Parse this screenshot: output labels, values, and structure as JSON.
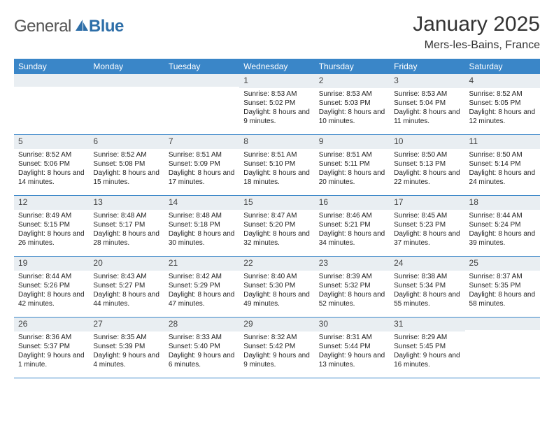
{
  "brand": {
    "general": "General",
    "blue": "Blue"
  },
  "header": {
    "title": "January 2025",
    "location": "Mers-les-Bains, France"
  },
  "colors": {
    "header_band": "#3a86c8",
    "daynum_band": "#e9eef2",
    "row_border": "#3a86c8",
    "text": "#333333",
    "logo_blue": "#2d6ea8"
  },
  "fonts": {
    "title_size_pt": 22,
    "location_size_pt": 12,
    "dow_size_pt": 9,
    "daynum_size_pt": 9,
    "body_size_pt": 7.5
  },
  "dow": [
    "Sunday",
    "Monday",
    "Tuesday",
    "Wednesday",
    "Thursday",
    "Friday",
    "Saturday"
  ],
  "weeks": [
    [
      {
        "num": "",
        "lines": []
      },
      {
        "num": "",
        "lines": []
      },
      {
        "num": "",
        "lines": []
      },
      {
        "num": "1",
        "lines": [
          "Sunrise: 8:53 AM",
          "Sunset: 5:02 PM",
          "Daylight: 8 hours and 9 minutes."
        ]
      },
      {
        "num": "2",
        "lines": [
          "Sunrise: 8:53 AM",
          "Sunset: 5:03 PM",
          "Daylight: 8 hours and 10 minutes."
        ]
      },
      {
        "num": "3",
        "lines": [
          "Sunrise: 8:53 AM",
          "Sunset: 5:04 PM",
          "Daylight: 8 hours and 11 minutes."
        ]
      },
      {
        "num": "4",
        "lines": [
          "Sunrise: 8:52 AM",
          "Sunset: 5:05 PM",
          "Daylight: 8 hours and 12 minutes."
        ]
      }
    ],
    [
      {
        "num": "5",
        "lines": [
          "Sunrise: 8:52 AM",
          "Sunset: 5:06 PM",
          "Daylight: 8 hours and 14 minutes."
        ]
      },
      {
        "num": "6",
        "lines": [
          "Sunrise: 8:52 AM",
          "Sunset: 5:08 PM",
          "Daylight: 8 hours and 15 minutes."
        ]
      },
      {
        "num": "7",
        "lines": [
          "Sunrise: 8:51 AM",
          "Sunset: 5:09 PM",
          "Daylight: 8 hours and 17 minutes."
        ]
      },
      {
        "num": "8",
        "lines": [
          "Sunrise: 8:51 AM",
          "Sunset: 5:10 PM",
          "Daylight: 8 hours and 18 minutes."
        ]
      },
      {
        "num": "9",
        "lines": [
          "Sunrise: 8:51 AM",
          "Sunset: 5:11 PM",
          "Daylight: 8 hours and 20 minutes."
        ]
      },
      {
        "num": "10",
        "lines": [
          "Sunrise: 8:50 AM",
          "Sunset: 5:13 PM",
          "Daylight: 8 hours and 22 minutes."
        ]
      },
      {
        "num": "11",
        "lines": [
          "Sunrise: 8:50 AM",
          "Sunset: 5:14 PM",
          "Daylight: 8 hours and 24 minutes."
        ]
      }
    ],
    [
      {
        "num": "12",
        "lines": [
          "Sunrise: 8:49 AM",
          "Sunset: 5:15 PM",
          "Daylight: 8 hours and 26 minutes."
        ]
      },
      {
        "num": "13",
        "lines": [
          "Sunrise: 8:48 AM",
          "Sunset: 5:17 PM",
          "Daylight: 8 hours and 28 minutes."
        ]
      },
      {
        "num": "14",
        "lines": [
          "Sunrise: 8:48 AM",
          "Sunset: 5:18 PM",
          "Daylight: 8 hours and 30 minutes."
        ]
      },
      {
        "num": "15",
        "lines": [
          "Sunrise: 8:47 AM",
          "Sunset: 5:20 PM",
          "Daylight: 8 hours and 32 minutes."
        ]
      },
      {
        "num": "16",
        "lines": [
          "Sunrise: 8:46 AM",
          "Sunset: 5:21 PM",
          "Daylight: 8 hours and 34 minutes."
        ]
      },
      {
        "num": "17",
        "lines": [
          "Sunrise: 8:45 AM",
          "Sunset: 5:23 PM",
          "Daylight: 8 hours and 37 minutes."
        ]
      },
      {
        "num": "18",
        "lines": [
          "Sunrise: 8:44 AM",
          "Sunset: 5:24 PM",
          "Daylight: 8 hours and 39 minutes."
        ]
      }
    ],
    [
      {
        "num": "19",
        "lines": [
          "Sunrise: 8:44 AM",
          "Sunset: 5:26 PM",
          "Daylight: 8 hours and 42 minutes."
        ]
      },
      {
        "num": "20",
        "lines": [
          "Sunrise: 8:43 AM",
          "Sunset: 5:27 PM",
          "Daylight: 8 hours and 44 minutes."
        ]
      },
      {
        "num": "21",
        "lines": [
          "Sunrise: 8:42 AM",
          "Sunset: 5:29 PM",
          "Daylight: 8 hours and 47 minutes."
        ]
      },
      {
        "num": "22",
        "lines": [
          "Sunrise: 8:40 AM",
          "Sunset: 5:30 PM",
          "Daylight: 8 hours and 49 minutes."
        ]
      },
      {
        "num": "23",
        "lines": [
          "Sunrise: 8:39 AM",
          "Sunset: 5:32 PM",
          "Daylight: 8 hours and 52 minutes."
        ]
      },
      {
        "num": "24",
        "lines": [
          "Sunrise: 8:38 AM",
          "Sunset: 5:34 PM",
          "Daylight: 8 hours and 55 minutes."
        ]
      },
      {
        "num": "25",
        "lines": [
          "Sunrise: 8:37 AM",
          "Sunset: 5:35 PM",
          "Daylight: 8 hours and 58 minutes."
        ]
      }
    ],
    [
      {
        "num": "26",
        "lines": [
          "Sunrise: 8:36 AM",
          "Sunset: 5:37 PM",
          "Daylight: 9 hours and 1 minute."
        ]
      },
      {
        "num": "27",
        "lines": [
          "Sunrise: 8:35 AM",
          "Sunset: 5:39 PM",
          "Daylight: 9 hours and 4 minutes."
        ]
      },
      {
        "num": "28",
        "lines": [
          "Sunrise: 8:33 AM",
          "Sunset: 5:40 PM",
          "Daylight: 9 hours and 6 minutes."
        ]
      },
      {
        "num": "29",
        "lines": [
          "Sunrise: 8:32 AM",
          "Sunset: 5:42 PM",
          "Daylight: 9 hours and 9 minutes."
        ]
      },
      {
        "num": "30",
        "lines": [
          "Sunrise: 8:31 AM",
          "Sunset: 5:44 PM",
          "Daylight: 9 hours and 13 minutes."
        ]
      },
      {
        "num": "31",
        "lines": [
          "Sunrise: 8:29 AM",
          "Sunset: 5:45 PM",
          "Daylight: 9 hours and 16 minutes."
        ]
      },
      {
        "num": "",
        "lines": []
      }
    ]
  ]
}
